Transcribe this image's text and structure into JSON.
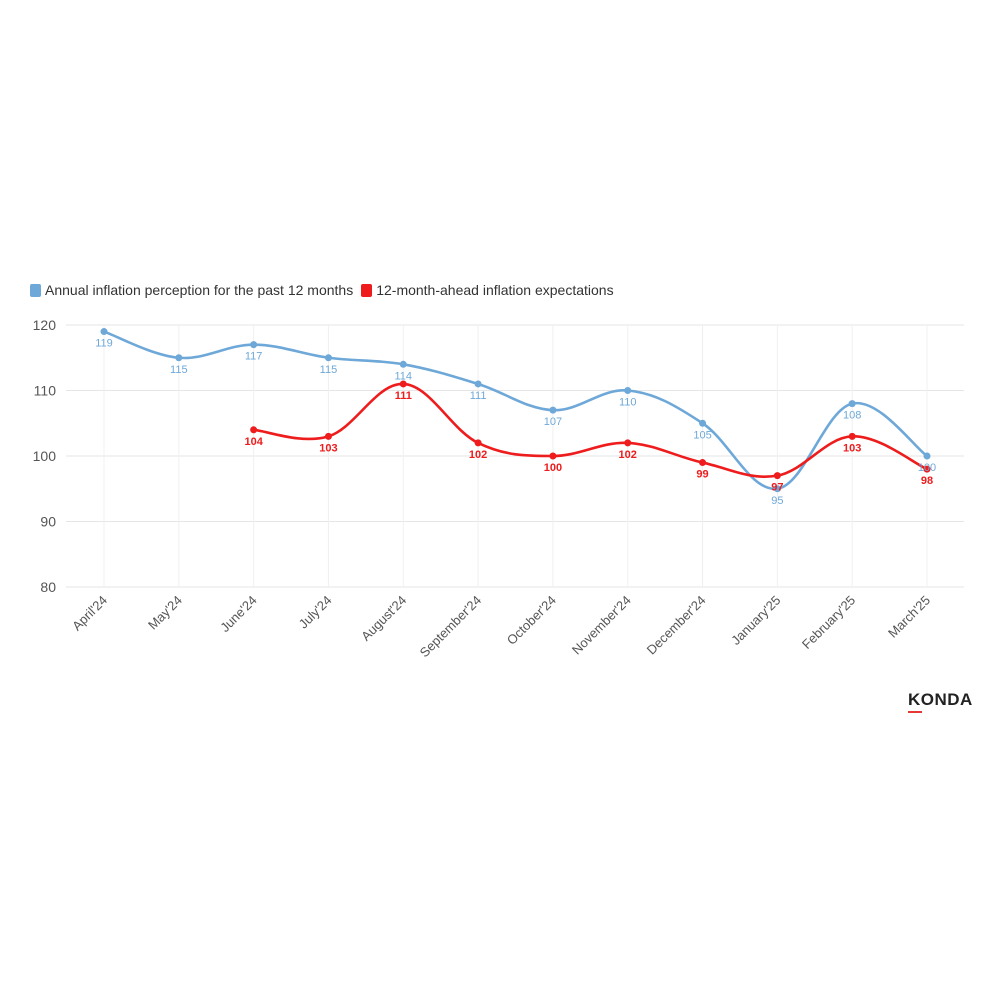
{
  "colors": {
    "series1": "#6ea8d8",
    "series2": "#ee1c1c",
    "grid": "#e6e6e6",
    "tick": "#555555"
  },
  "logo": {
    "text": "KONDA"
  },
  "chart_data": {
    "type": "line",
    "categories": [
      "April'24",
      "May'24",
      "June'24",
      "July'24",
      "August'24",
      "September'24",
      "October'24",
      "November'24",
      "December'24",
      "January'25",
      "February'25",
      "March'25"
    ],
    "series": [
      {
        "name": "Annual inflation perception for the past 12 months",
        "color": "#6ea8d8",
        "values": [
          119,
          115,
          117,
          115,
          114,
          111,
          107,
          110,
          105,
          95,
          108,
          100
        ]
      },
      {
        "name": "12-month-ahead inflation expectations",
        "color": "#ee1c1c",
        "values": [
          null,
          null,
          104,
          103,
          111,
          102,
          100,
          102,
          99,
          97,
          103,
          98
        ]
      }
    ],
    "yticks": [
      80,
      90,
      100,
      110,
      120
    ],
    "ylim": [
      80,
      120
    ],
    "grid": true,
    "legend": "top-left",
    "data_labels": true
  }
}
